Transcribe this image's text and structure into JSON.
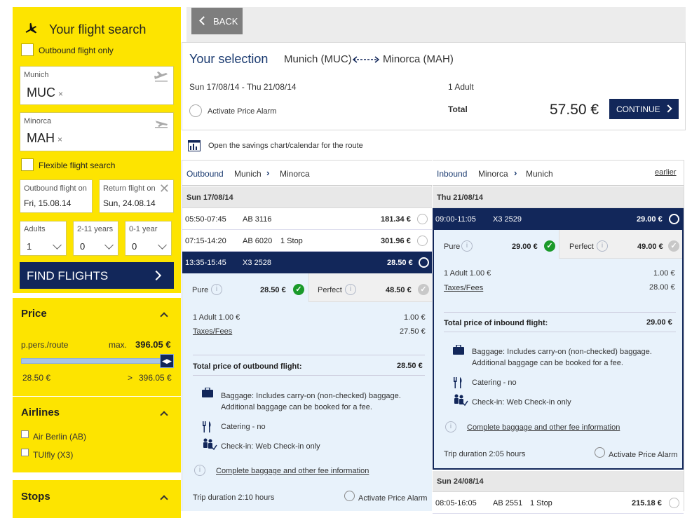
{
  "sidebar": {
    "title": "Your flight search",
    "outbound_only": "Outbound flight only",
    "from": {
      "label": "Munich",
      "code": "MUC"
    },
    "to": {
      "label": "Minorca",
      "code": "MAH"
    },
    "flexible": "Flexible flight search",
    "outbound_date": {
      "label": "Outbound flight on",
      "value": "Fri, 15.08.14"
    },
    "return_date": {
      "label": "Return flight on",
      "value": "Sun, 24.08.14"
    },
    "adults": {
      "label": "Adults",
      "value": "1"
    },
    "children": {
      "label": "2-11 years",
      "value": "0"
    },
    "infants": {
      "label": "0-1 year",
      "value": "0"
    },
    "find_button": "FIND FLIGHTS",
    "price": {
      "title": "Price",
      "per": "p.pers./route",
      "max_label": "max.",
      "max_value": "396.05 €",
      "min": "28.50 €",
      "gt": ">",
      "max2": "396.05 €",
      "slider_fraction": 1.0
    },
    "airlines": {
      "title": "Airlines",
      "items": [
        "Air Berlin (AB)",
        "TUIfly (X3)"
      ]
    },
    "stops": {
      "title": "Stops"
    }
  },
  "back_button": "BACK",
  "selection": {
    "title": "Your selection",
    "from": "Munich (MUC)",
    "to": "Minorca (MAH)",
    "dates": "Sun 17/08/14 - Thu 21/08/14",
    "passengers": "1 Adult",
    "alarm": "Activate Price Alarm",
    "total_label": "Total",
    "total_value": "57.50 €",
    "continue": "CONTINUE"
  },
  "savings_link": "Open the savings chart/calendar for the route",
  "outbound": {
    "header": {
      "dir": "Outbound",
      "from": "Munich",
      "to": "Minorca"
    },
    "date": "Sun 17/08/14",
    "flights": [
      {
        "time": "05:50-07:45",
        "code": "AB 3116",
        "stops": "",
        "price": "181.34 €"
      },
      {
        "time": "07:15-14:20",
        "code": "AB 6020",
        "stops": "1 Stop",
        "price": "301.96 €"
      },
      {
        "time": "13:35-15:45",
        "code": "X3 2528",
        "stops": "",
        "price": "28.50 €"
      }
    ],
    "pure": {
      "label": "Pure",
      "price": "28.50 €"
    },
    "perfect": {
      "label": "Perfect",
      "price": "48.50 €"
    },
    "adult": {
      "label": "1 Adult 1.00  €",
      "value": "1.00 €"
    },
    "taxes": {
      "label": "Taxes/Fees",
      "value": "27.50 €"
    },
    "total": {
      "label": "Total price of outbound flight:",
      "value": "28.50 €"
    },
    "baggage_bold": "Baggage:",
    "baggage": " Includes carry-on (non-checked) baggage.",
    "baggage2": "Additional baggage can be booked for a fee.",
    "catering": "Catering - no",
    "checkin": "Check-in: Web Check-in only",
    "fee_info": "Complete baggage and other fee information",
    "duration": "Trip duration 2:10  hours",
    "alarm": "Activate Price Alarm"
  },
  "inbound": {
    "header": {
      "dir": "Inbound",
      "from": "Minorca",
      "to": "Munich",
      "earlier": "earlier"
    },
    "date": "Thu 21/08/14",
    "flights": [
      {
        "time": "09:00-11:05",
        "code": "X3 2529",
        "stops": "",
        "price": "29.00 €"
      }
    ],
    "pure": {
      "label": "Pure",
      "price": "29.00 €"
    },
    "perfect": {
      "label": "Perfect",
      "price": "49.00 €"
    },
    "adult": {
      "label": "1 Adult 1.00  €",
      "value": "1.00 €"
    },
    "taxes": {
      "label": "Taxes/Fees",
      "value": "28.00 €"
    },
    "total": {
      "label": "Total price of inbound flight:",
      "value": "29.00 €"
    },
    "baggage_bold": "Baggage:",
    "baggage": " Includes carry-on (non-checked) baggage.",
    "baggage2": "Additional baggage can be booked for a fee.",
    "catering": "Catering - no",
    "checkin": "Check-in: Web Check-in only",
    "fee_info": "Complete baggage and other fee information",
    "duration": "Trip duration 2:05  hours",
    "alarm": "Activate Price Alarm",
    "date2": "Sun 24/08/14",
    "flight2": {
      "time": "08:05-16:05",
      "code": "AB 2551",
      "stops": "1 Stop",
      "price": "215.18 €"
    }
  },
  "colors": {
    "yellow": "#fde400",
    "navy": "#12275a",
    "green": "#1a9a2a",
    "lightblue": "#e8f2fb"
  }
}
